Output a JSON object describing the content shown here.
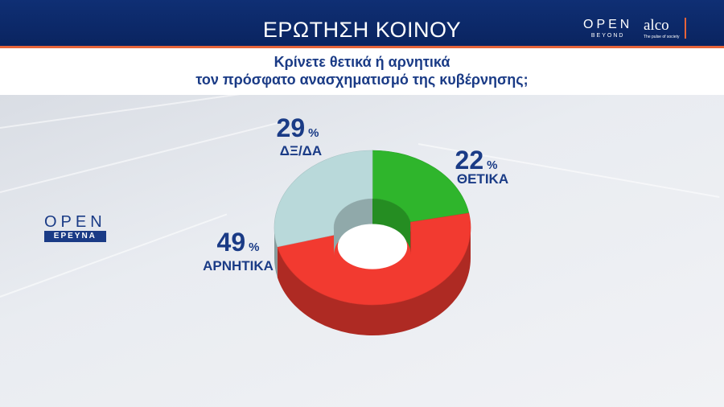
{
  "header": {
    "title": "ΕΡΩΤΗΣΗ ΚΟΙΝΟΥ"
  },
  "logos": {
    "open": "OPEN",
    "open_sub": "BEYOND",
    "alco": "alco",
    "alco_sub": "The pulse of society",
    "ereuna_word": "OPEN",
    "ereuna_box": "ΕΡΕΥΝΑ"
  },
  "question": {
    "line1": "Κρίνετε θετικά ή αρνητικά",
    "line2": "τον πρόσφατο ανασχηματισμό της κυβέρνησης;"
  },
  "chart_data": {
    "type": "pie",
    "style": "3d-donut",
    "categories": [
      "ΘΕΤΙΚΑ",
      "ΑΡΝΗΤΙΚΑ",
      "ΔΞ/ΔΑ"
    ],
    "values": [
      22,
      49,
      29
    ],
    "unit": "%",
    "colors": [
      "#2fb52c",
      "#f23a30",
      "#b9d9da"
    ]
  }
}
